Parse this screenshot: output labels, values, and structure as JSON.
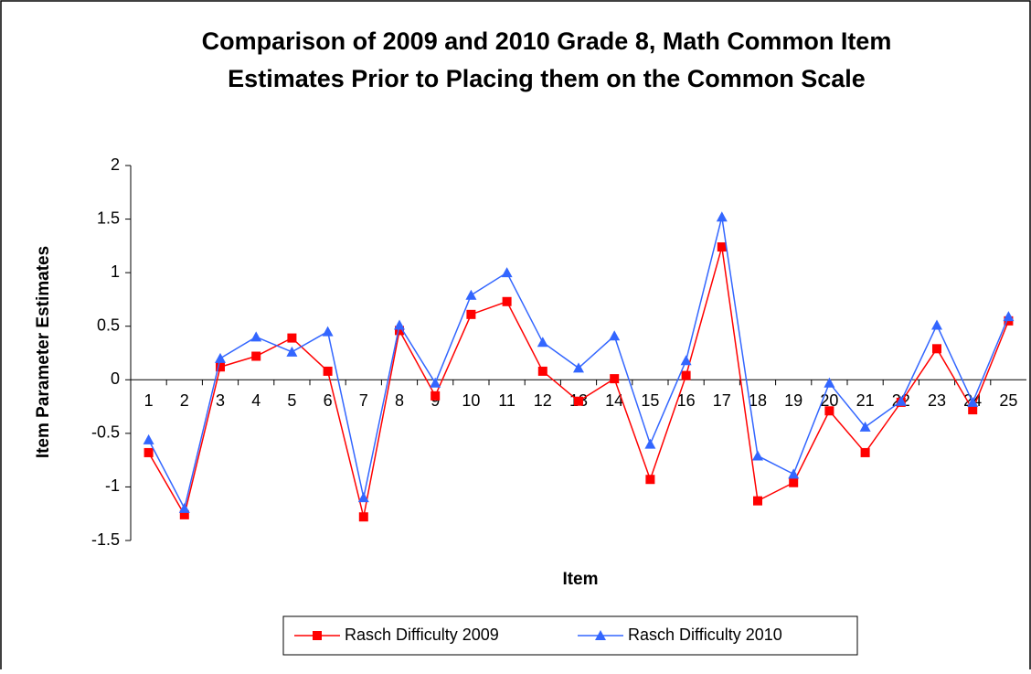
{
  "chart_data": {
    "type": "line",
    "title": [
      "Comparison of 2009 and 2010 Grade 8, Math Common Item",
      "Estimates Prior to Placing them on the Common Scale"
    ],
    "x_label": "Item",
    "y_label": "Item Parameter Estimates",
    "categories": [
      "1",
      "2",
      "3",
      "4",
      "5",
      "6",
      "7",
      "8",
      "9",
      "10",
      "11",
      "12",
      "13",
      "14",
      "15",
      "16",
      "17",
      "18",
      "19",
      "20",
      "21",
      "22",
      "23",
      "24",
      "25"
    ],
    "series": [
      {
        "name": "Rasch Difficulty  2009",
        "color": "#ff0000",
        "marker": "square",
        "values": [
          -0.68,
          -1.26,
          0.12,
          0.22,
          0.39,
          0.08,
          -1.28,
          0.46,
          -0.15,
          0.61,
          0.73,
          0.08,
          -0.2,
          0.01,
          -0.93,
          0.04,
          1.24,
          -1.13,
          -0.96,
          -0.29,
          -0.68,
          -0.21,
          0.29,
          -0.28,
          0.55
        ]
      },
      {
        "name": "Rasch Difficulty  2010",
        "color": "#3366ff",
        "marker": "triangle",
        "values": [
          -0.56,
          -1.2,
          0.2,
          0.4,
          0.26,
          0.45,
          -1.1,
          0.51,
          -0.03,
          0.79,
          1.0,
          0.35,
          0.11,
          0.41,
          -0.6,
          0.18,
          1.52,
          -0.71,
          -0.88,
          -0.03,
          -0.44,
          -0.2,
          0.51,
          -0.21,
          0.59
        ]
      }
    ],
    "ylim": [
      -1.5,
      2
    ],
    "yticks": [
      -1.5,
      -1,
      -0.5,
      0,
      0.5,
      1,
      1.5,
      2
    ],
    "legend": "bottom"
  }
}
